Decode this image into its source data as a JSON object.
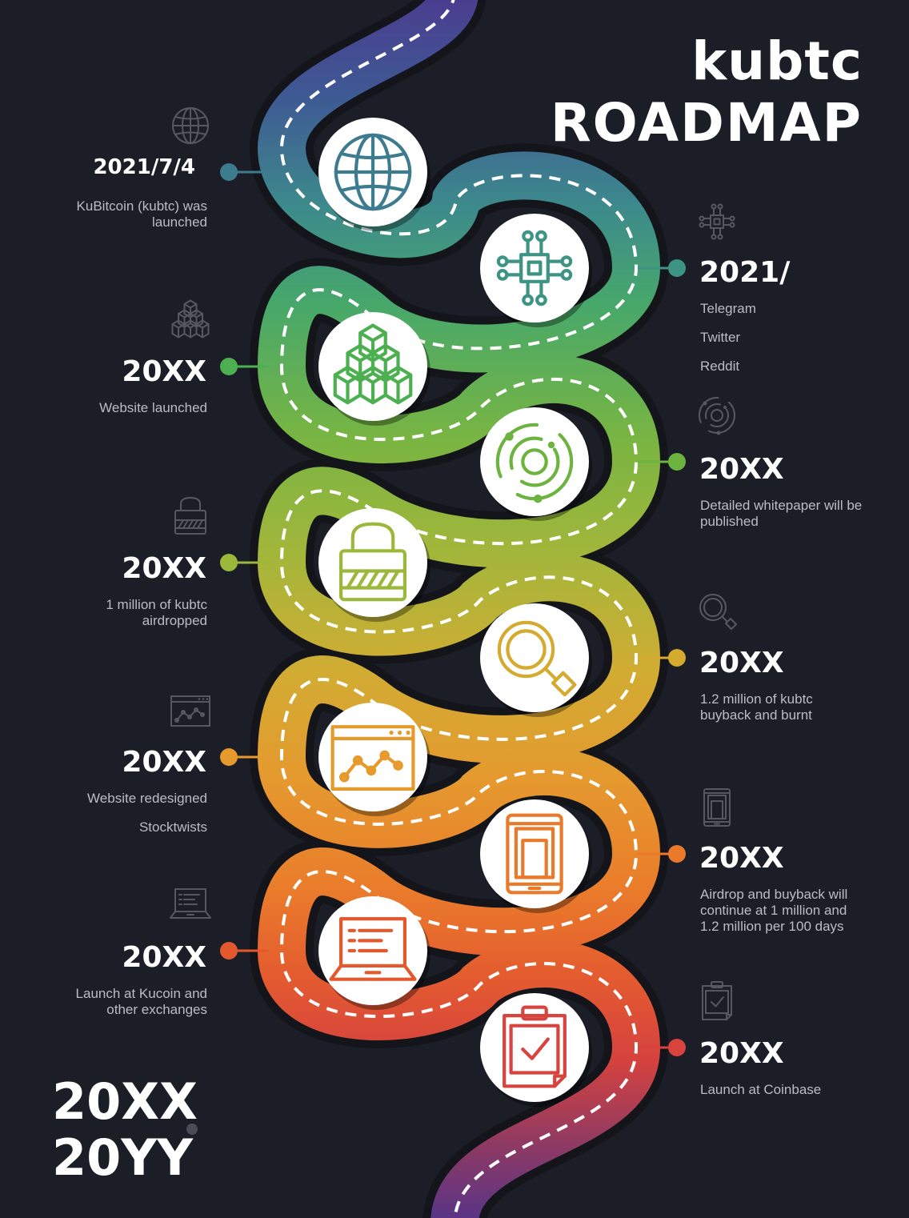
{
  "title": {
    "line1": "kubtc",
    "line2": "ROADMAP"
  },
  "period": {
    "start": "20XX",
    "end": "20YY"
  },
  "milestones": [
    {
      "side": "left",
      "year": "2021/7/4",
      "lines": [
        "KuBitcoin (kubtc) was",
        "launched"
      ],
      "icon": "globe-icon",
      "color": "#3d7c8e"
    },
    {
      "side": "right",
      "year": "2021/",
      "lines": [
        "Telegram",
        "Twitter",
        "Reddit"
      ],
      "icon": "chip-icon",
      "color": "#3e9484"
    },
    {
      "side": "left",
      "year": "20XX",
      "lines": [
        "Website launched"
      ],
      "icon": "blocks-icon",
      "color": "#4caf50"
    },
    {
      "side": "right",
      "year": "20XX",
      "lines": [
        "Detailed whitepaper will be",
        "published"
      ],
      "icon": "orbit-icon",
      "color": "#6db33f"
    },
    {
      "side": "left",
      "year": "20XX",
      "lines": [
        "1 million of kubtc",
        "airdropped"
      ],
      "icon": "lock-icon",
      "color": "#9cb83a"
    },
    {
      "side": "right",
      "year": "20XX",
      "lines": [
        "1.2 million of kubtc",
        "buyback and burnt"
      ],
      "icon": "magnifier-icon",
      "color": "#d4aa2f"
    },
    {
      "side": "left",
      "year": "20XX",
      "lines": [
        "Website redesigned",
        "Stocktwists"
      ],
      "icon": "browser-chart-icon",
      "color": "#e79a2c"
    },
    {
      "side": "right",
      "year": "20XX",
      "lines": [
        "Airdrop and buyback will",
        "continue at 1 million and",
        "1.2 million per 100 days"
      ],
      "icon": "tablet-icon",
      "color": "#ea7a2a"
    },
    {
      "side": "left",
      "year": "20XX",
      "lines": [
        "Launch at Kucoin and",
        "other exchanges"
      ],
      "icon": "laptop-icon",
      "color": "#e4582e"
    },
    {
      "side": "right",
      "year": "20XX",
      "lines": [
        "Launch at Coinbase"
      ],
      "icon": "clipboard-icon",
      "color": "#d8433d"
    }
  ]
}
